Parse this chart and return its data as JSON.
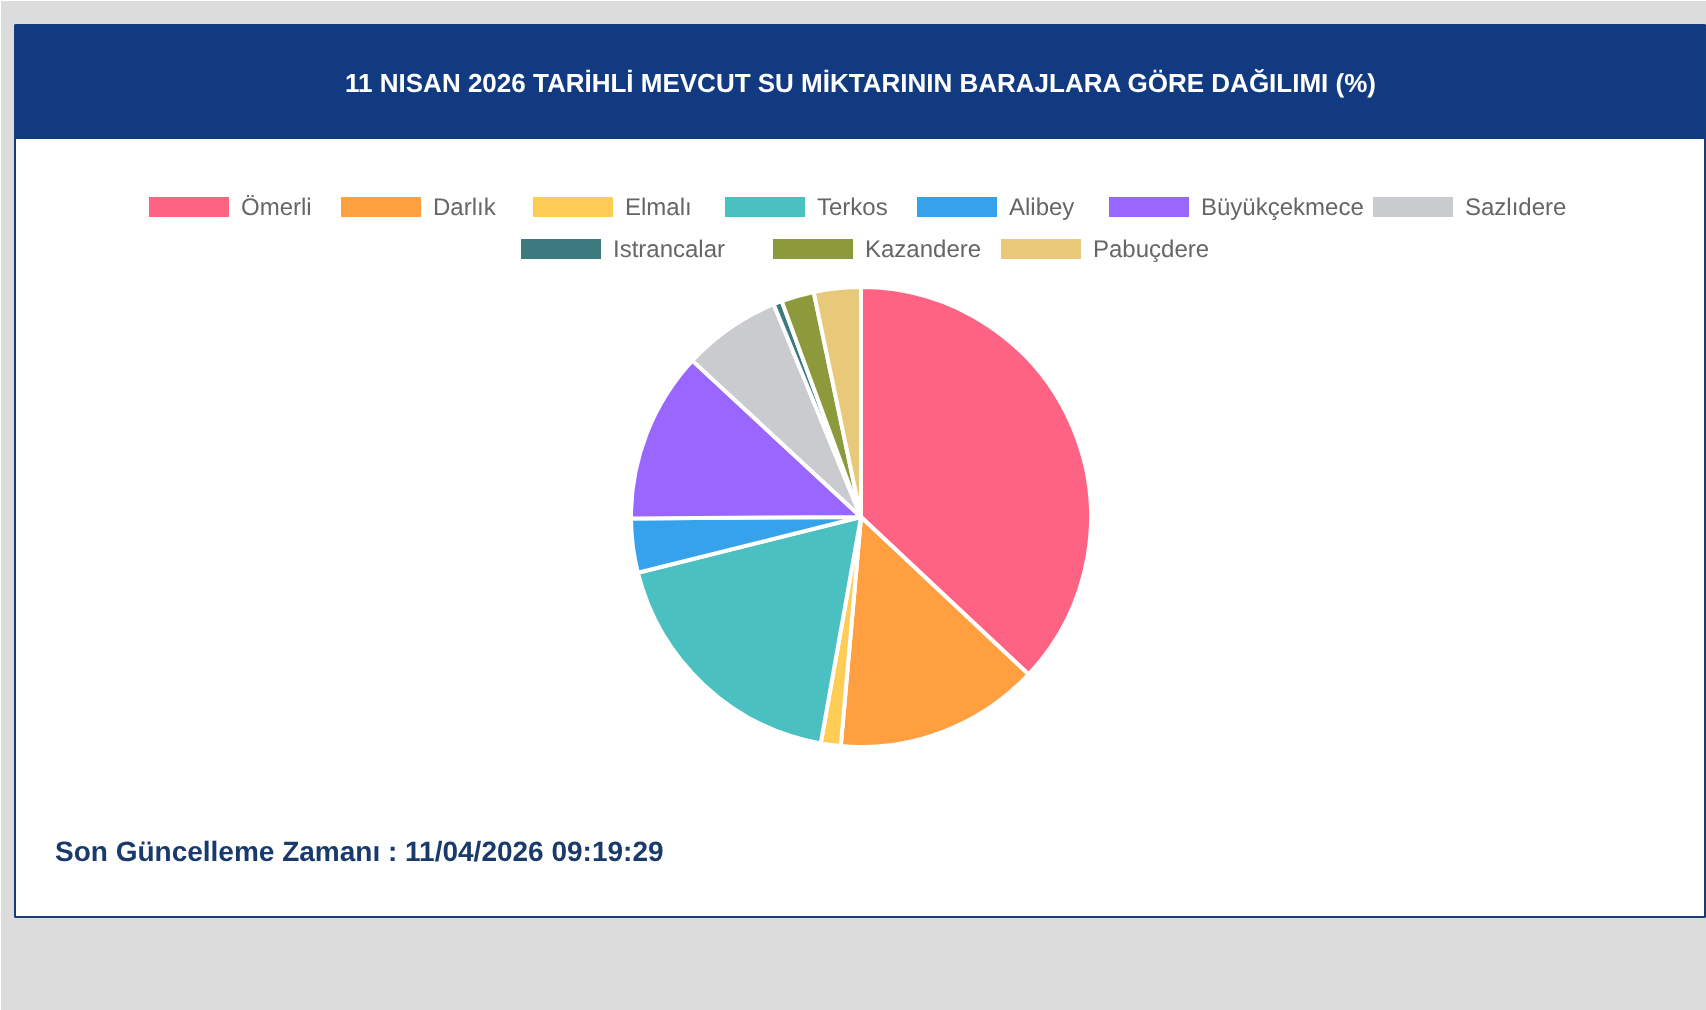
{
  "chart_data": {
    "type": "pie",
    "title": "11 NISAN 2026 TARİHLİ MEVCUT SU MİKTARININ BARAJLARA GÖRE DAĞILIMI (%)",
    "categories": [
      "Ömerli",
      "Darlık",
      "Elmalı",
      "Terkos",
      "Alibey",
      "Büyükçekmece",
      "Sazlıdere",
      "Istrancalar",
      "Kazandere",
      "Pabuçdere"
    ],
    "values": [
      37.0,
      14.4,
      1.4,
      18.3,
      3.8,
      12.0,
      6.9,
      0.6,
      2.3,
      3.3
    ],
    "colors": [
      "#ff6384",
      "#ff9f40",
      "#ffcd56",
      "#4bc0c0",
      "#36a2eb",
      "#9966ff",
      "#c9cbcf",
      "#3d7a80",
      "#8c9a3c",
      "#e8c97a"
    ],
    "legend": "top",
    "annotations": [
      "Son Güncelleme Zamanı : 11/04/2026 09:19:29"
    ]
  }
}
